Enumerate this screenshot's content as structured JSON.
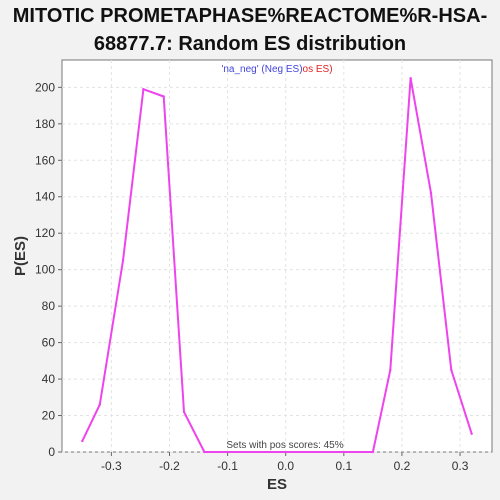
{
  "chart_data": {
    "type": "line",
    "title_line1": "MITOTIC PROMETAPHASE%REACTOME%R-HSA-",
    "title_line2": "68877.7: Random ES distribution",
    "xlabel": "ES",
    "ylabel": "P(ES)",
    "xlim": [
      -0.385,
      0.355
    ],
    "ylim": [
      0,
      215
    ],
    "x_ticks": [
      -0.3,
      -0.2,
      -0.1,
      0.0,
      0.1,
      0.2,
      0.3
    ],
    "x_tick_labels": [
      "-0.3",
      "-0.2",
      "-0.1",
      "0.0",
      "0.1",
      "0.2",
      "0.3"
    ],
    "y_ticks": [
      0,
      20,
      40,
      60,
      80,
      100,
      120,
      140,
      160,
      180,
      200
    ],
    "y_tick_labels": [
      "0",
      "20",
      "40",
      "60",
      "80",
      "100",
      "120",
      "140",
      "160",
      "180",
      "200"
    ],
    "grid": true,
    "legend": {
      "placement": "top-center",
      "part1": "'na_neg' (Neg ES)",
      "part2": "os ES)",
      "color1": "#4444dd",
      "color2": "#dd2222"
    },
    "annotation": "Sets with pos scores: 45%",
    "series": [
      {
        "color": "#ee44ee",
        "x": [
          -0.35,
          -0.32,
          -0.28,
          -0.245,
          -0.21,
          -0.175,
          -0.14,
          0.15,
          0.18,
          0.215,
          0.25,
          0.285,
          0.32
        ],
        "y": [
          6,
          26,
          105,
          199,
          195,
          22,
          0,
          0,
          45,
          205,
          142,
          45,
          10
        ]
      }
    ]
  }
}
